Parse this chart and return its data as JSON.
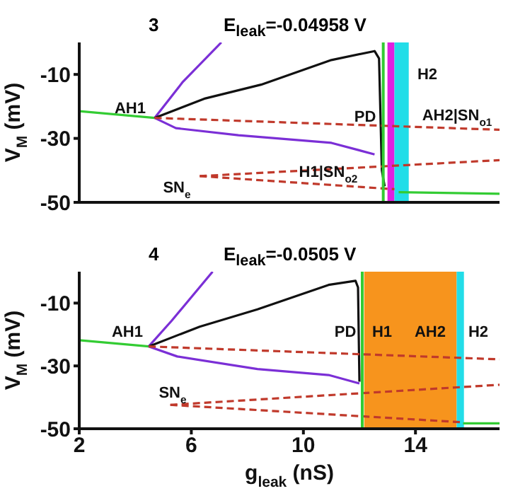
{
  "chart_data": [
    {
      "type": "line",
      "title": "3",
      "subtitle": "E$_{leak}$=-0.04958 V",
      "ylabel": "V$_{M}$ (mV)",
      "xlim": [
        2,
        17
      ],
      "xticks": [
        2,
        6,
        10,
        14
      ],
      "ylim": [
        -50,
        0
      ],
      "yticks": [
        -10,
        -30,
        -50
      ],
      "tick_labels": "y",
      "marker": "none",
      "series": [
        {
          "color": "#33cc33",
          "line_style": "solid",
          "x": [
            2,
            4.69
          ],
          "values": [
            -21.5,
            -23.6
          ]
        },
        {
          "color": "#7b2fd6",
          "line_style": "solid",
          "x": [
            4.69,
            5.7,
            7.07
          ],
          "values": [
            -23.6,
            -12.3,
            0
          ]
        },
        {
          "color": "#111111",
          "line_style": "solid",
          "x": [
            4.69,
            6.5,
            8.49,
            11.0,
            12.54,
            12.7,
            12.8,
            12.9
          ],
          "values": [
            -23.6,
            -17.5,
            -13.2,
            -5.5,
            -2.7,
            -5,
            -40,
            -45
          ]
        },
        {
          "color": "#7b2fd6",
          "line_style": "solid",
          "x": [
            4.69,
            5.45,
            7.68,
            11.0,
            12.54
          ],
          "values": [
            -23.6,
            -26.8,
            -29,
            -31.4,
            -35
          ]
        },
        {
          "color": "#c0392b",
          "line_style": "dashed",
          "x": [
            4.69,
            17
          ],
          "values": [
            -23.6,
            -27.3
          ]
        },
        {
          "color": "#c0392b",
          "line_style": "dashed",
          "x": [
            6.3,
            17
          ],
          "values": [
            -41.8,
            -36.8
          ]
        },
        {
          "color": "#c0392b",
          "line_style": "dashed",
          "x": [
            6.3,
            13.25
          ],
          "values": [
            -41.8,
            -45.9
          ]
        },
        {
          "color": "#33cc33",
          "line_style": "solid",
          "x": [
            13.4,
            17
          ],
          "values": [
            -46.8,
            -47.3
          ]
        }
      ],
      "bands": [
        {
          "axis": "x",
          "from": 13.0,
          "to": 13.25,
          "color": "#e020e0"
        },
        {
          "axis": "x",
          "from": 13.25,
          "to": 13.76,
          "color": "#22dde8"
        }
      ],
      "ref_lines": [
        {
          "axis": "x",
          "value": 12.85,
          "color": "#33cc33"
        }
      ],
      "annotations": [
        "AH1",
        "PD",
        "H2",
        "AH2|SN$_{o1}$",
        "H1|SN$_{o2}$",
        "SN$_{e}$"
      ]
    },
    {
      "type": "line",
      "title": "4",
      "subtitle": "E$_{leak}$=-0.0505 V",
      "xlabel": "g$_{leak}$ (nS)",
      "ylabel": "V$_{M}$ (mV)",
      "xlim": [
        2,
        17
      ],
      "xticks": [
        2,
        6,
        10,
        14
      ],
      "ylim": [
        -50,
        0
      ],
      "yticks": [
        -10,
        -30,
        -50
      ],
      "marker": "none",
      "series": [
        {
          "color": "#33cc33",
          "line_style": "solid",
          "x": [
            2,
            4.48
          ],
          "values": [
            -21.8,
            -23.8
          ]
        },
        {
          "color": "#7b2fd6",
          "line_style": "solid",
          "x": [
            4.48,
            5.3,
            6.76
          ],
          "values": [
            -23.8,
            -15.6,
            0
          ]
        },
        {
          "color": "#111111",
          "line_style": "solid",
          "x": [
            4.48,
            6.3,
            8.36,
            10.9,
            11.86,
            11.95,
            12.0
          ],
          "values": [
            -23.8,
            -17.5,
            -12,
            -4.2,
            -2.9,
            -5,
            -35
          ]
        },
        {
          "color": "#7b2fd6",
          "line_style": "solid",
          "x": [
            4.48,
            5.5,
            8.36,
            10.9,
            12.0
          ],
          "values": [
            -23.8,
            -27,
            -31,
            -32.9,
            -35.6
          ]
        },
        {
          "color": "#c0392b",
          "line_style": "dashed",
          "x": [
            4.48,
            17
          ],
          "values": [
            -23.8,
            -27.9
          ]
        },
        {
          "color": "#c0392b",
          "line_style": "dashed",
          "x": [
            5.25,
            17
          ],
          "values": [
            -42.4,
            -36
          ]
        },
        {
          "color": "#c0392b",
          "line_style": "dashed",
          "x": [
            5.25,
            15.6
          ],
          "values": [
            -42.4,
            -47.9
          ]
        },
        {
          "color": "#33cc33",
          "line_style": "solid",
          "x": [
            15.7,
            17
          ],
          "values": [
            -48.3,
            -48.3
          ]
        }
      ],
      "bands": [
        {
          "axis": "x",
          "from": 12.17,
          "to": 15.47,
          "color": "#f7941d"
        },
        {
          "axis": "x",
          "from": 15.47,
          "to": 15.73,
          "color": "#22dde8"
        }
      ],
      "ref_lines": [
        {
          "axis": "x",
          "value": 12.1,
          "color": "#33cc33"
        }
      ],
      "annotations": [
        "AH1",
        "PD",
        "H1",
        "AH2",
        "H2",
        "SN$_{e}$"
      ]
    }
  ]
}
